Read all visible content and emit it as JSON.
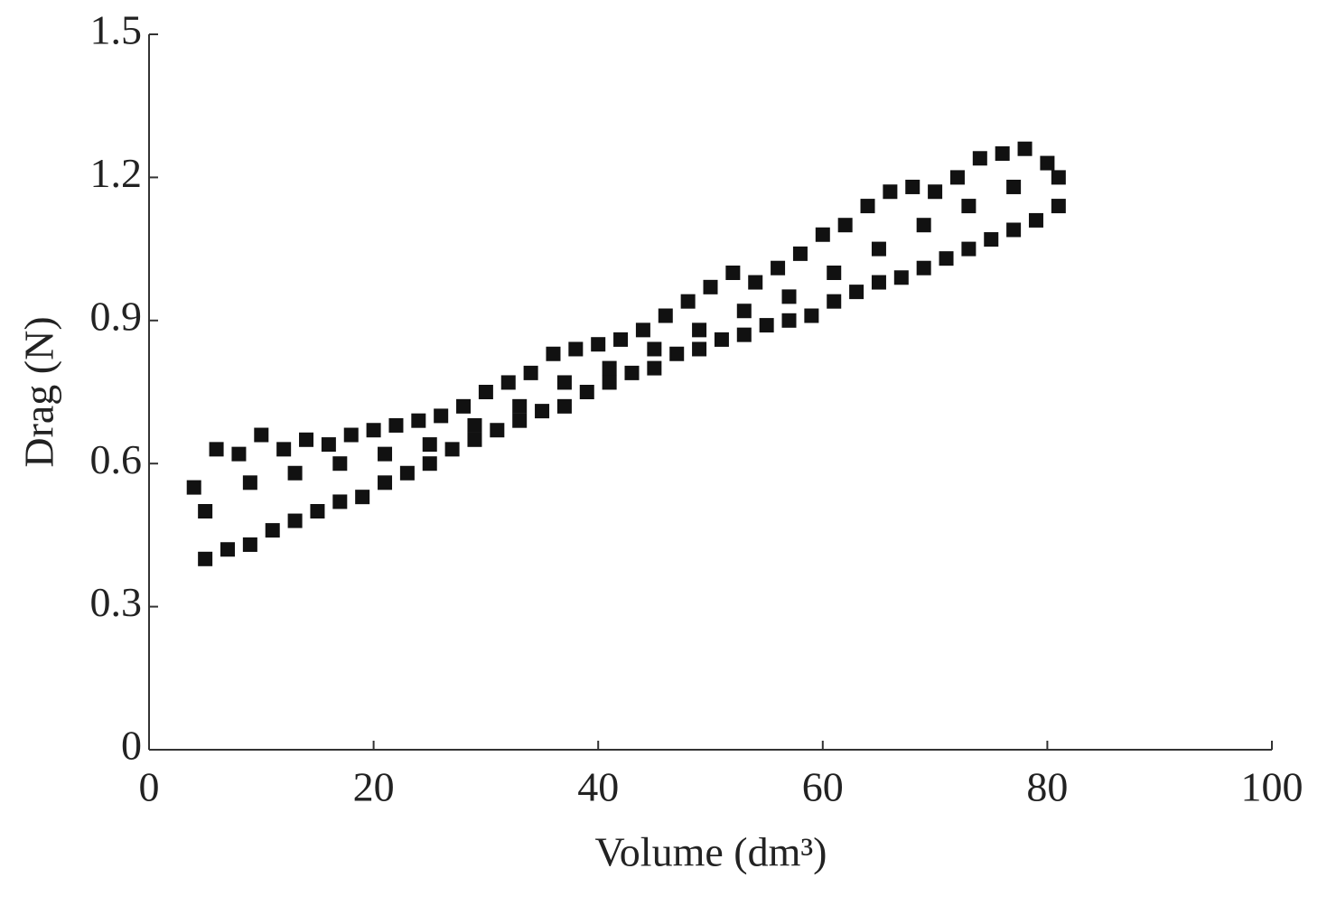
{
  "chart_data": {
    "type": "scatter",
    "x_label": "Volume (dm³)",
    "y_label": "Drag (N)",
    "xlim": [
      0,
      100
    ],
    "xticks": [
      0,
      20,
      40,
      60,
      80,
      100
    ],
    "ylim": [
      0,
      1.5
    ],
    "yticks": [
      0,
      {
        "value": 0.3,
        "label": "0.3"
      },
      {
        "value": 0.6,
        "label": "0.6"
      },
      {
        "value": 0.9,
        "label": "0.9"
      },
      {
        "value": 1.2,
        "label": "1.2"
      },
      {
        "value": 1.5,
        "label": "1.5"
      }
    ],
    "color": "#111111",
    "x": [
      5,
      7,
      9,
      11,
      13,
      15,
      17,
      19,
      21,
      23,
      25,
      27,
      29,
      31,
      33,
      35,
      37,
      39,
      41,
      43,
      45,
      47,
      49,
      51,
      53,
      55,
      57,
      59,
      61,
      63,
      65,
      67,
      69,
      71,
      73,
      75,
      77,
      79,
      81,
      4,
      6,
      8,
      10,
      12,
      14,
      16,
      18,
      20,
      22,
      24,
      26,
      28,
      30,
      32,
      34,
      36,
      38,
      40,
      42,
      44,
      46,
      48,
      50,
      52,
      54,
      56,
      58,
      60,
      62,
      64,
      66,
      68,
      70,
      72,
      74,
      76,
      78,
      80,
      5,
      9,
      13,
      17,
      21,
      25,
      29,
      33,
      37,
      41,
      45,
      49,
      53,
      57,
      61,
      65,
      69,
      73,
      77,
      81
    ],
    "y": [
      0.4,
      0.42,
      0.43,
      0.46,
      0.48,
      0.5,
      0.52,
      0.53,
      0.56,
      0.58,
      0.6,
      0.63,
      0.65,
      0.67,
      0.69,
      0.71,
      0.72,
      0.75,
      0.77,
      0.79,
      0.8,
      0.83,
      0.84,
      0.86,
      0.87,
      0.89,
      0.9,
      0.91,
      0.94,
      0.96,
      0.98,
      0.99,
      1.01,
      1.03,
      1.05,
      1.07,
      1.09,
      1.11,
      1.14,
      0.55,
      0.63,
      0.62,
      0.66,
      0.63,
      0.65,
      0.64,
      0.66,
      0.67,
      0.68,
      0.69,
      0.7,
      0.72,
      0.75,
      0.77,
      0.79,
      0.83,
      0.84,
      0.85,
      0.86,
      0.88,
      0.91,
      0.94,
      0.97,
      1.0,
      0.98,
      1.01,
      1.04,
      1.08,
      1.1,
      1.14,
      1.17,
      1.18,
      1.17,
      1.2,
      1.24,
      1.25,
      1.26,
      1.23,
      0.5,
      0.56,
      0.58,
      0.6,
      0.62,
      0.64,
      0.68,
      0.72,
      0.77,
      0.8,
      0.84,
      0.88,
      0.92,
      0.95,
      1.0,
      1.05,
      1.1,
      1.14,
      1.18,
      1.2
    ]
  }
}
